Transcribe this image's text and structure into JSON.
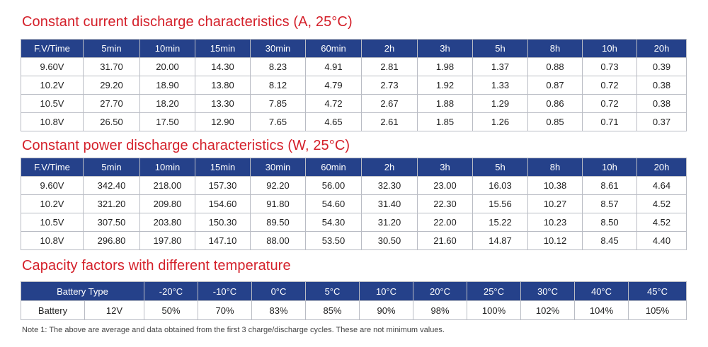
{
  "current_table": {
    "title": "Constant current discharge characteristics (A, 25°C)",
    "headers": [
      "F.V/Time",
      "5min",
      "10min",
      "15min",
      "30min",
      "60min",
      "2h",
      "3h",
      "5h",
      "8h",
      "10h",
      "20h"
    ],
    "rows": [
      [
        "9.60V",
        "31.70",
        "20.00",
        "14.30",
        "8.23",
        "4.91",
        "2.81",
        "1.98",
        "1.37",
        "0.88",
        "0.73",
        "0.39"
      ],
      [
        "10.2V",
        "29.20",
        "18.90",
        "13.80",
        "8.12",
        "4.79",
        "2.73",
        "1.92",
        "1.33",
        "0.87",
        "0.72",
        "0.38"
      ],
      [
        "10.5V",
        "27.70",
        "18.20",
        "13.30",
        "7.85",
        "4.72",
        "2.67",
        "1.88",
        "1.29",
        "0.86",
        "0.72",
        "0.38"
      ],
      [
        "10.8V",
        "26.50",
        "17.50",
        "12.90",
        "7.65",
        "4.65",
        "2.61",
        "1.85",
        "1.26",
        "0.85",
        "0.71",
        "0.37"
      ]
    ]
  },
  "power_table": {
    "title": "Constant power discharge characteristics (W, 25°C)",
    "headers": [
      "F.V/Time",
      "5min",
      "10min",
      "15min",
      "30min",
      "60min",
      "2h",
      "3h",
      "5h",
      "8h",
      "10h",
      "20h"
    ],
    "rows": [
      [
        "9.60V",
        "342.40",
        "218.00",
        "157.30",
        "92.20",
        "56.00",
        "32.30",
        "23.00",
        "16.03",
        "10.38",
        "8.61",
        "4.64"
      ],
      [
        "10.2V",
        "321.20",
        "209.80",
        "154.60",
        "91.80",
        "54.60",
        "31.40",
        "22.30",
        "15.56",
        "10.27",
        "8.57",
        "4.52"
      ],
      [
        "10.5V",
        "307.50",
        "203.80",
        "150.30",
        "89.50",
        "54.30",
        "31.20",
        "22.00",
        "15.22",
        "10.23",
        "8.50",
        "4.52"
      ],
      [
        "10.8V",
        "296.80",
        "197.80",
        "147.10",
        "88.00",
        "53.50",
        "30.50",
        "21.60",
        "14.87",
        "10.12",
        "8.45",
        "4.40"
      ]
    ]
  },
  "capacity_table": {
    "title": "Capacity factors with different temperature",
    "headers": [
      "Battery Type",
      "-20°C",
      "-10°C",
      "0°C",
      "5°C",
      "10°C",
      "20°C",
      "25°C",
      "30°C",
      "40°C",
      "45°C"
    ],
    "row_label": "Battery",
    "row_voltage": "12V",
    "row_values": [
      "50%",
      "70%",
      "83%",
      "85%",
      "90%",
      "98%",
      "100%",
      "102%",
      "104%",
      "105%"
    ]
  },
  "note": "Note 1: The above are average and data obtained from the first 3 charge/discharge cycles. These are not minimum values."
}
